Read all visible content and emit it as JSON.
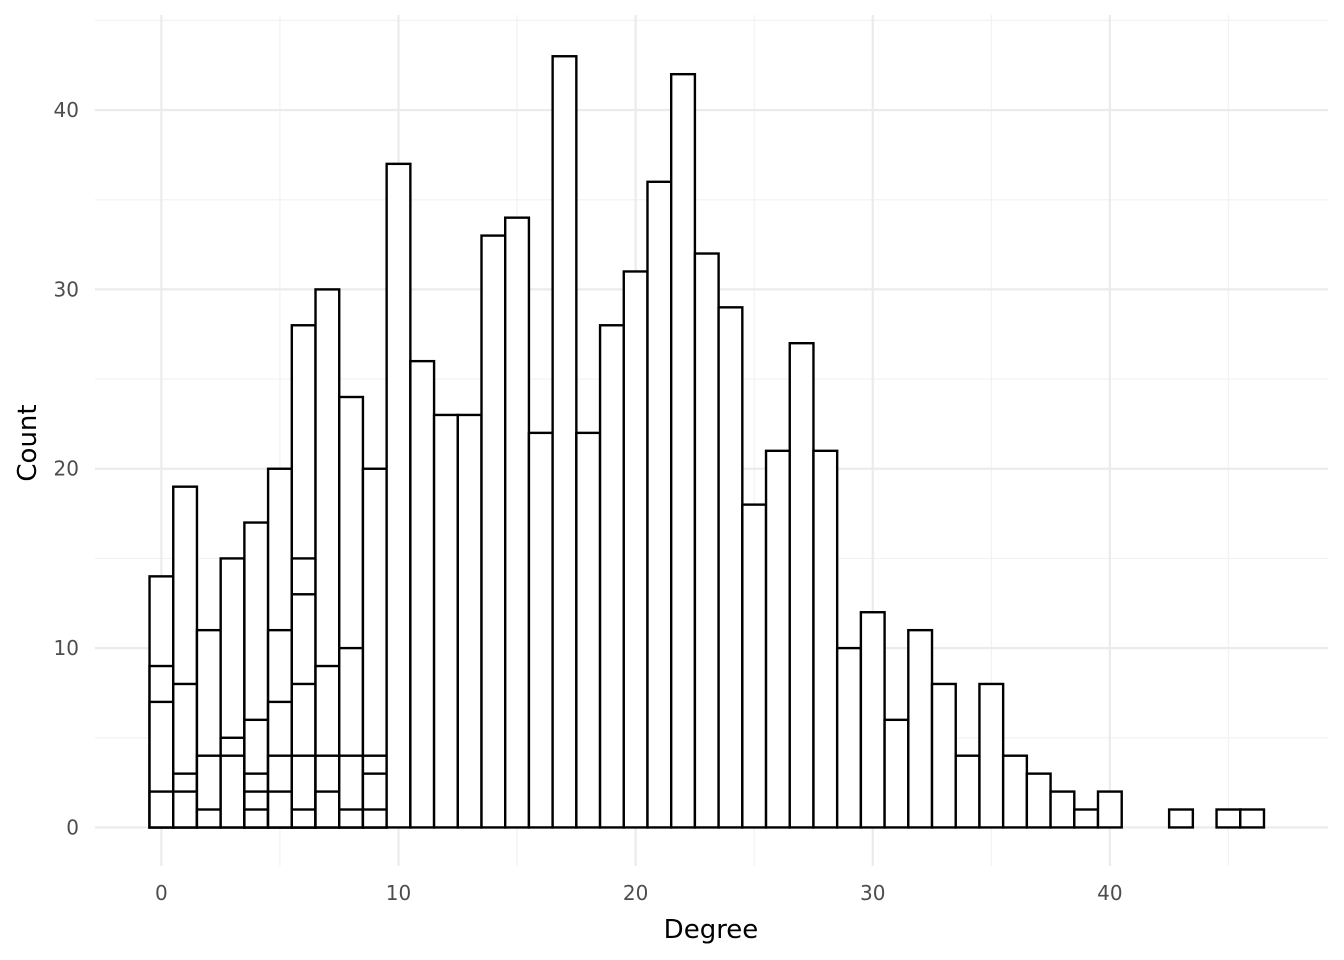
{
  "chart_data": {
    "type": "bar",
    "subtype": "stacked histogram",
    "xlabel": "Degree",
    "ylabel": "Count",
    "xlim": [
      -2.8,
      49.2
    ],
    "ylim": [
      -2.15,
      45.3
    ],
    "x_ticks": [
      0,
      10,
      20,
      30,
      40
    ],
    "y_ticks": [
      0,
      10,
      20,
      30,
      40
    ],
    "bin_width": 1,
    "grid": true,
    "legend": "none",
    "bar_fill": "#ffffff",
    "bar_outline": "#000000",
    "bins": [
      {
        "x": 0,
        "stack": [
          2,
          7,
          9,
          14
        ]
      },
      {
        "x": 1,
        "stack": [
          2,
          3,
          8,
          19
        ]
      },
      {
        "x": 2,
        "stack": [
          1,
          4,
          11
        ]
      },
      {
        "x": 3,
        "stack": [
          4,
          5,
          15
        ]
      },
      {
        "x": 4,
        "stack": [
          1,
          2,
          3,
          6,
          17
        ]
      },
      {
        "x": 5,
        "stack": [
          2,
          4,
          7,
          11,
          20
        ]
      },
      {
        "x": 6,
        "stack": [
          1,
          4,
          8,
          13,
          15,
          28
        ]
      },
      {
        "x": 7,
        "stack": [
          2,
          4,
          9,
          30
        ]
      },
      {
        "x": 8,
        "stack": [
          1,
          4,
          10,
          24
        ]
      },
      {
        "x": 9,
        "stack": [
          1,
          3,
          4,
          20
        ]
      },
      {
        "x": 10,
        "stack": [
          37
        ]
      },
      {
        "x": 11,
        "stack": [
          26
        ]
      },
      {
        "x": 12,
        "stack": [
          23
        ]
      },
      {
        "x": 13,
        "stack": [
          23
        ]
      },
      {
        "x": 14,
        "stack": [
          33
        ]
      },
      {
        "x": 15,
        "stack": [
          34
        ]
      },
      {
        "x": 16,
        "stack": [
          22
        ]
      },
      {
        "x": 17,
        "stack": [
          43
        ]
      },
      {
        "x": 18,
        "stack": [
          22
        ]
      },
      {
        "x": 19,
        "stack": [
          28
        ]
      },
      {
        "x": 20,
        "stack": [
          31
        ]
      },
      {
        "x": 21,
        "stack": [
          36
        ]
      },
      {
        "x": 22,
        "stack": [
          42
        ]
      },
      {
        "x": 23,
        "stack": [
          32
        ]
      },
      {
        "x": 24,
        "stack": [
          29
        ]
      },
      {
        "x": 25,
        "stack": [
          18
        ]
      },
      {
        "x": 26,
        "stack": [
          21
        ]
      },
      {
        "x": 27,
        "stack": [
          27
        ]
      },
      {
        "x": 28,
        "stack": [
          21
        ]
      },
      {
        "x": 29,
        "stack": [
          10
        ]
      },
      {
        "x": 30,
        "stack": [
          12
        ]
      },
      {
        "x": 31,
        "stack": [
          6
        ]
      },
      {
        "x": 32,
        "stack": [
          11
        ]
      },
      {
        "x": 33,
        "stack": [
          8
        ]
      },
      {
        "x": 34,
        "stack": [
          4
        ]
      },
      {
        "x": 35,
        "stack": [
          8
        ]
      },
      {
        "x": 36,
        "stack": [
          4
        ]
      },
      {
        "x": 37,
        "stack": [
          3
        ]
      },
      {
        "x": 38,
        "stack": [
          2
        ]
      },
      {
        "x": 39,
        "stack": [
          1
        ]
      },
      {
        "x": 40,
        "stack": [
          2
        ]
      },
      {
        "x": 43,
        "stack": [
          1
        ]
      },
      {
        "x": 45,
        "stack": [
          1
        ]
      },
      {
        "x": 46,
        "stack": [
          1
        ]
      }
    ]
  }
}
